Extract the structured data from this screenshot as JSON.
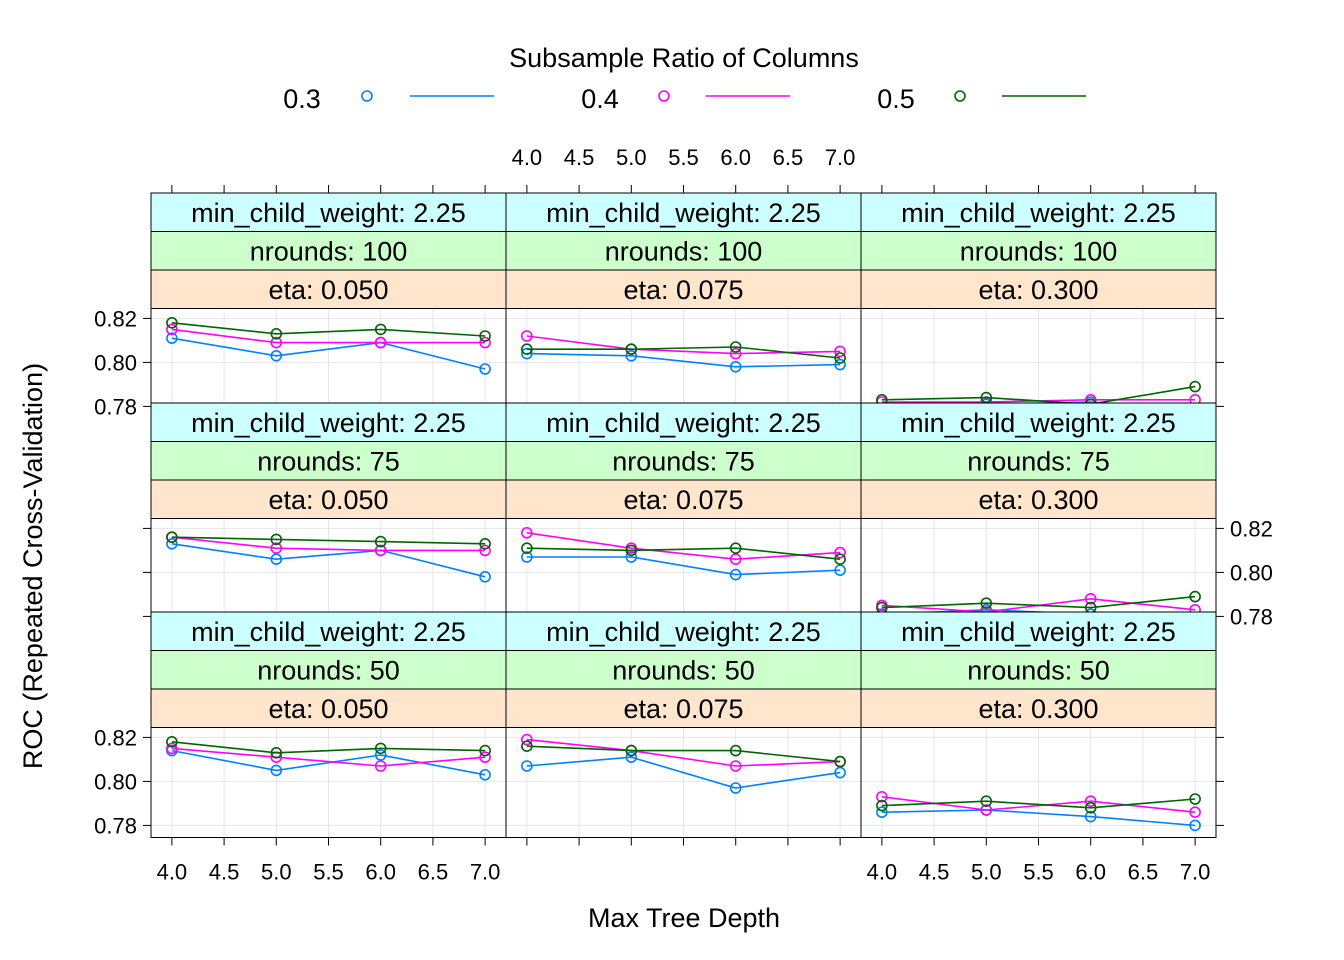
{
  "chart_data": {
    "type": "line",
    "legend": {
      "title": "Subsample Ratio of Columns",
      "placement": "top",
      "entries": [
        {
          "label": "0.3",
          "color": "#0080ff"
        },
        {
          "label": "0.4",
          "color": "#ff00ff"
        },
        {
          "label": "0.5",
          "color": "#006400"
        }
      ]
    },
    "xlabel": "Max Tree Depth",
    "ylabel": "ROC (Repeated Cross-Validation)",
    "x_values": [
      4,
      5,
      6,
      7
    ],
    "x_ticks": [
      "4.0",
      "4.5",
      "5.0",
      "5.5",
      "6.0",
      "6.5",
      "7.0"
    ],
    "xlim": [
      3.8,
      7.2
    ],
    "y_ticks": [
      "0.78",
      "0.80",
      "0.82"
    ],
    "ylim": [
      0.7745,
      0.8245
    ],
    "grid": true,
    "strip_colors": {
      "min_child_weight": "#ccffff",
      "nrounds": "#ccffcc",
      "eta": "#ffe5cc"
    },
    "panels": [
      {
        "min_child_weight": "min_child_weight: 2.25",
        "nrounds": "nrounds: 100",
        "eta": "eta: 0.050",
        "series": [
          {
            "name": "0.3",
            "values": [
              0.811,
              0.803,
              0.809,
              0.797
            ]
          },
          {
            "name": "0.4",
            "values": [
              0.815,
              0.809,
              0.809,
              0.809
            ]
          },
          {
            "name": "0.5",
            "values": [
              0.818,
              0.813,
              0.815,
              0.812
            ]
          }
        ]
      },
      {
        "min_child_weight": "min_child_weight: 2.25",
        "nrounds": "nrounds: 100",
        "eta": "eta: 0.075",
        "series": [
          {
            "name": "0.3",
            "values": [
              0.804,
              0.803,
              0.798,
              0.799
            ]
          },
          {
            "name": "0.4",
            "values": [
              0.812,
              0.806,
              0.804,
              0.805
            ]
          },
          {
            "name": "0.5",
            "values": [
              0.806,
              0.806,
              0.807,
              0.802
            ]
          }
        ]
      },
      {
        "min_child_weight": "min_child_weight: 2.25",
        "nrounds": "nrounds: 100",
        "eta": "eta: 0.300",
        "series": [
          {
            "name": "0.3",
            "values": [
              0.778,
              0.781,
              0.782,
              0.779
            ]
          },
          {
            "name": "0.4",
            "values": [
              0.782,
              0.782,
              0.783,
              0.783
            ]
          },
          {
            "name": "0.5",
            "values": [
              0.783,
              0.784,
              0.781,
              0.789
            ]
          }
        ]
      },
      {
        "min_child_weight": "min_child_weight: 2.25",
        "nrounds": "nrounds:  75",
        "eta": "eta: 0.050",
        "series": [
          {
            "name": "0.3",
            "values": [
              0.813,
              0.806,
              0.81,
              0.798
            ]
          },
          {
            "name": "0.4",
            "values": [
              0.816,
              0.811,
              0.81,
              0.81
            ]
          },
          {
            "name": "0.5",
            "values": [
              0.816,
              0.815,
              0.814,
              0.813
            ]
          }
        ]
      },
      {
        "min_child_weight": "min_child_weight: 2.25",
        "nrounds": "nrounds:  75",
        "eta": "eta: 0.075",
        "series": [
          {
            "name": "0.3",
            "values": [
              0.807,
              0.807,
              0.799,
              0.801
            ]
          },
          {
            "name": "0.4",
            "values": [
              0.818,
              0.811,
              0.806,
              0.809
            ]
          },
          {
            "name": "0.5",
            "values": [
              0.811,
              0.81,
              0.811,
              0.806
            ]
          }
        ]
      },
      {
        "min_child_weight": "min_child_weight: 2.25",
        "nrounds": "nrounds:  75",
        "eta": "eta: 0.300",
        "series": [
          {
            "name": "0.3",
            "values": [
              0.781,
              0.783,
              0.781,
              0.779
            ]
          },
          {
            "name": "0.4",
            "values": [
              0.785,
              0.782,
              0.788,
              0.783
            ]
          },
          {
            "name": "0.5",
            "values": [
              0.784,
              0.786,
              0.784,
              0.789
            ]
          }
        ]
      },
      {
        "min_child_weight": "min_child_weight: 2.25",
        "nrounds": "nrounds:  50",
        "eta": "eta: 0.050",
        "series": [
          {
            "name": "0.3",
            "values": [
              0.814,
              0.805,
              0.812,
              0.803
            ]
          },
          {
            "name": "0.4",
            "values": [
              0.815,
              0.811,
              0.807,
              0.811
            ]
          },
          {
            "name": "0.5",
            "values": [
              0.818,
              0.813,
              0.815,
              0.814
            ]
          }
        ]
      },
      {
        "min_child_weight": "min_child_weight: 2.25",
        "nrounds": "nrounds:  50",
        "eta": "eta: 0.075",
        "series": [
          {
            "name": "0.3",
            "values": [
              0.807,
              0.811,
              0.797,
              0.804
            ]
          },
          {
            "name": "0.4",
            "values": [
              0.819,
              0.814,
              0.807,
              0.809
            ]
          },
          {
            "name": "0.5",
            "values": [
              0.816,
              0.814,
              0.814,
              0.809
            ]
          }
        ]
      },
      {
        "min_child_weight": "min_child_weight: 2.25",
        "nrounds": "nrounds:  50",
        "eta": "eta: 0.300",
        "series": [
          {
            "name": "0.3",
            "values": [
              0.786,
              0.787,
              0.784,
              0.78
            ]
          },
          {
            "name": "0.4",
            "values": [
              0.793,
              0.787,
              0.791,
              0.786
            ]
          },
          {
            "name": "0.5",
            "values": [
              0.789,
              0.791,
              0.788,
              0.792
            ]
          }
        ]
      }
    ]
  }
}
